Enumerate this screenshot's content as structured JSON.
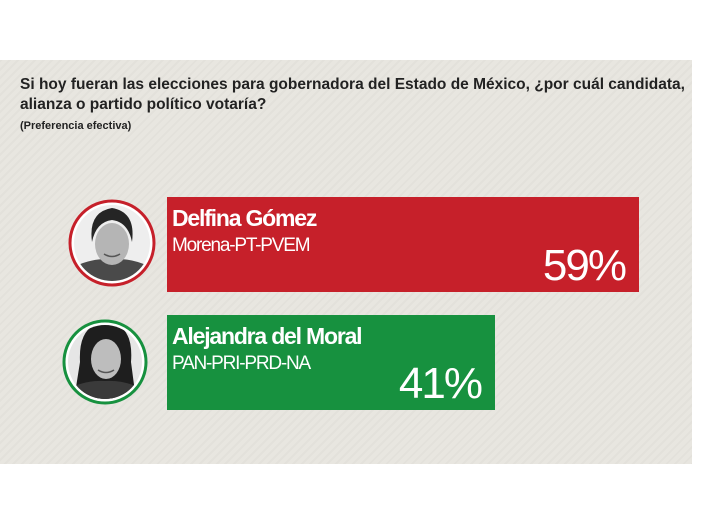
{
  "question": "Si hoy fueran las elecciones para gobernadora del Estado de México, ¿por cuál candidata, alianza o partido político votaría?",
  "note": "(Preferencia efectiva)",
  "colors": {
    "panel": "#e8e6e0",
    "delfina": "#c6202a",
    "alejandra": "#17913f"
  },
  "chart_data": {
    "type": "bar",
    "orientation": "horizontal",
    "title": "Si hoy fueran las elecciones para gobernadora del Estado de México, ¿por cuál candidata, alianza o partido político votaría?",
    "subtitle": "(Preferencia efectiva)",
    "categories": [
      "Delfina Gómez",
      "Alejandra del Moral"
    ],
    "groups": [
      "Morena-PT-PVEM",
      "PAN-PRI-PRD-NA"
    ],
    "values": [
      59,
      41
    ],
    "value_labels": [
      "59%",
      "41%"
    ],
    "unit": "%",
    "grid": false,
    "legend": "none"
  }
}
